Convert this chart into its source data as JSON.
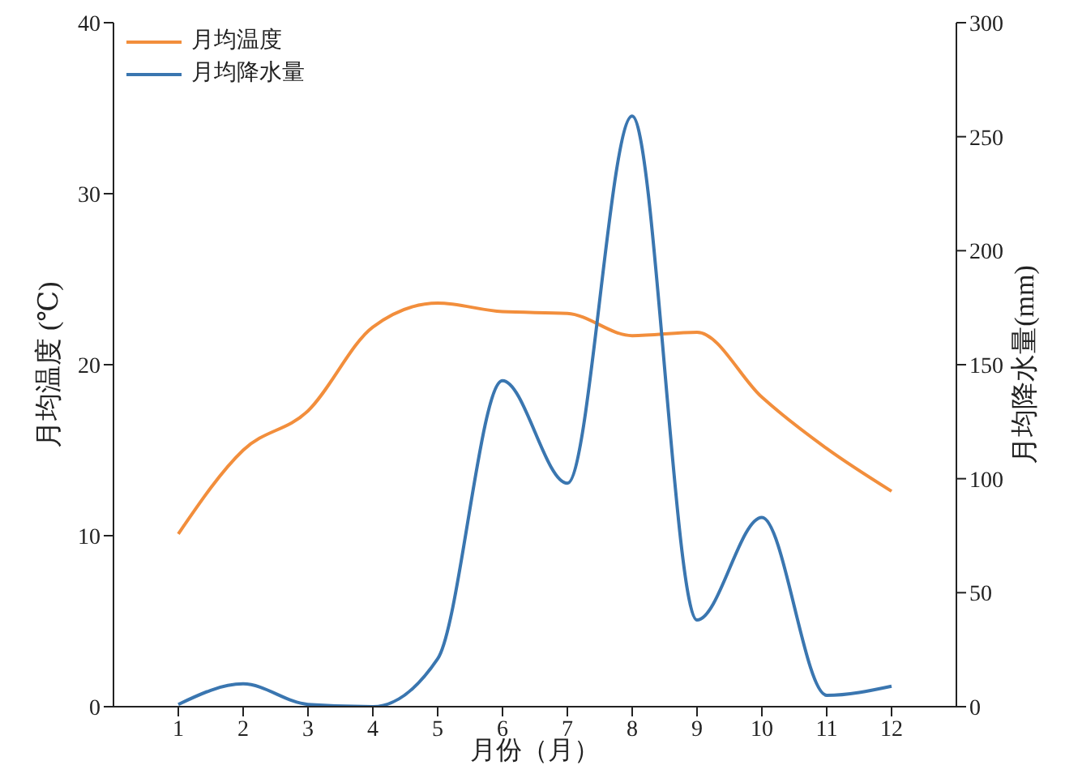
{
  "chart_data": {
    "type": "line",
    "xlabel": "月份（月）",
    "ylabel": "月均温度 (℃)",
    "y2label": "月均降水量(mm)",
    "x": [
      1,
      2,
      3,
      4,
      5,
      6,
      7,
      8,
      9,
      10,
      11,
      12
    ],
    "xlim": [
      0,
      13
    ],
    "xticks": [
      1,
      2,
      3,
      4,
      5,
      6,
      7,
      8,
      9,
      10,
      11,
      12
    ],
    "ylim": [
      0,
      40
    ],
    "yticks": [
      0,
      10,
      20,
      30,
      40
    ],
    "y2lim": [
      0,
      300
    ],
    "y2ticks": [
      0,
      50,
      100,
      150,
      200,
      250,
      300
    ],
    "series": [
      {
        "name": "月均温度",
        "color": "#f28e3c",
        "values": [
          10.1,
          15.0,
          17.3,
          22.2,
          23.6,
          23.1,
          23.0,
          21.7,
          21.9,
          18.1,
          15.1,
          12.6
        ]
      },
      {
        "name": "月均降水量",
        "color": "#3a76b0",
        "axis": "y2",
        "values": [
          1,
          10,
          1,
          0,
          21,
          143,
          98,
          259,
          38,
          83,
          5,
          9
        ]
      }
    ],
    "grid": false,
    "legend": "top left"
  }
}
